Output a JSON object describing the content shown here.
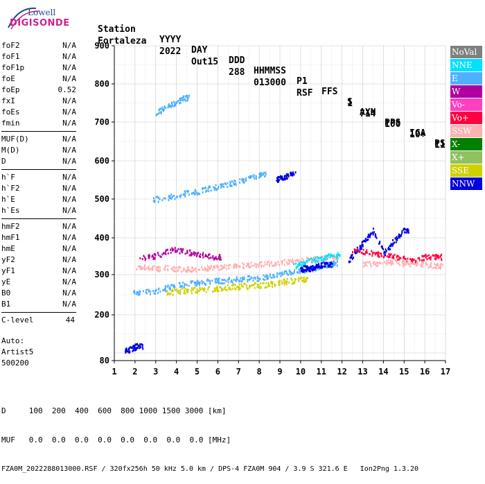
{
  "logo": {
    "top": "Lowell",
    "bottom": "DIGISONDE"
  },
  "header": {
    "labels": [
      "Station",
      "YYYY",
      "DAY",
      "DDD",
      "HHMMSS",
      "P1",
      "FFS",
      "S",
      "AXN",
      "PPS",
      "IGA",
      "PS"
    ],
    "values": [
      "Fortaleza",
      "2022",
      "Out15",
      "288",
      "013000",
      "RSF",
      "1",
      "714",
      "100",
      "10+",
      "11"
    ]
  },
  "params": {
    "group1": [
      {
        "label": "foF2",
        "value": "N/A"
      },
      {
        "label": "foF1",
        "value": "N/A"
      },
      {
        "label": "foF1p",
        "value": "N/A"
      },
      {
        "label": "foE",
        "value": "N/A"
      },
      {
        "label": "foEp",
        "value": "0.52"
      },
      {
        "label": "fxI",
        "value": "N/A"
      },
      {
        "label": "foEs",
        "value": "N/A"
      },
      {
        "label": "fmin",
        "value": "N/A"
      }
    ],
    "group2": [
      {
        "label": "MUF(D)",
        "value": "N/A"
      },
      {
        "label": "M(D)",
        "value": "N/A"
      },
      {
        "label": "D",
        "value": "N/A"
      }
    ],
    "group3": [
      {
        "label": "h`F",
        "value": "N/A"
      },
      {
        "label": "h`F2",
        "value": "N/A"
      },
      {
        "label": "h`E",
        "value": "N/A"
      },
      {
        "label": "h`Es",
        "value": "N/A"
      }
    ],
    "group4": [
      {
        "label": "hmF2",
        "value": "N/A"
      },
      {
        "label": "hmF1",
        "value": "N/A"
      },
      {
        "label": "hmE",
        "value": "N/A"
      },
      {
        "label": "yF2",
        "value": "N/A"
      },
      {
        "label": "yF1",
        "value": "N/A"
      },
      {
        "label": "yE",
        "value": "N/A"
      },
      {
        "label": "B0",
        "value": "N/A"
      },
      {
        "label": "B1",
        "value": "N/A"
      }
    ],
    "clevel": {
      "label": "C-level",
      "value": "44"
    }
  },
  "auto": {
    "line1": "Auto:",
    "line2": "Artist5",
    "line3": "500200"
  },
  "legend": [
    {
      "label": "NoVal",
      "color": "#808080"
    },
    {
      "label": "NNE",
      "color": "#00e0ff"
    },
    {
      "label": "E",
      "color": "#4fb0ff"
    },
    {
      "label": "W",
      "color": "#b000a0"
    },
    {
      "label": "Vo-",
      "color": "#ff40c0"
    },
    {
      "label": "Vo+",
      "color": "#ff0040"
    },
    {
      "label": "SSW",
      "color": "#ffb0b0"
    },
    {
      "label": "X-",
      "color": "#008000"
    },
    {
      "label": "X+",
      "color": "#90c060"
    },
    {
      "label": "SSE",
      "color": "#d0d000"
    },
    {
      "label": "NNW",
      "color": "#0000e0"
    }
  ],
  "footer": {
    "line1": "D     100  200  400  600  800 1000 1500 3000 [km]",
    "line2": "MUF   0.0  0.0  0.0  0.0  0.0  0.0  0.0  0.0 [MHz]",
    "line3": "FZA0M_2022288013000.RSF / 320fx256h 50 kHz 5.0 km / DPS-4 FZA0M 904 / 3.9 S 321.6 E   Ion2Png 1.3.20"
  },
  "chart_data": {
    "type": "scatter",
    "xlim": [
      1,
      17
    ],
    "ylim": [
      80,
      900
    ],
    "x_ticks": [
      1,
      2,
      3,
      4,
      5,
      6,
      7,
      8,
      9,
      10,
      11,
      12,
      13,
      14,
      15,
      16,
      17
    ],
    "y_ticks": [
      80,
      200,
      300,
      400,
      500,
      600,
      700,
      800,
      900
    ],
    "grid": true,
    "legend_position": "right",
    "traces": [
      {
        "legend": "E",
        "x": [
          1.85,
          2.2,
          3.0,
          3.5,
          4.0,
          4.5,
          5.0,
          5.5,
          6.0,
          6.5,
          7.0,
          7.5,
          8.0,
          8.5,
          9.0,
          9.5,
          10.0,
          10.5,
          11.0,
          11.5
        ],
        "y": [
          255,
          258,
          262,
          268,
          274,
          278,
          282,
          284,
          286,
          288,
          290,
          292,
          294,
          298,
          302,
          308,
          312,
          318,
          326,
          332
        ]
      },
      {
        "legend": "SSE",
        "x": [
          3.5,
          4.0,
          4.5,
          5.0,
          5.5,
          6.0,
          6.5,
          7.0,
          7.5,
          8.0,
          8.5,
          9.0,
          9.5,
          10.0
        ],
        "y": [
          258,
          260,
          262,
          264,
          266,
          268,
          270,
          272,
          274,
          276,
          278,
          282,
          286,
          290
        ]
      },
      {
        "legend": "SSW",
        "x": [
          2.0,
          2.5,
          3.0,
          3.5,
          4.0,
          4.5,
          5.0,
          5.5,
          6.0,
          6.5,
          7.0,
          7.5,
          8.0,
          8.5,
          9.0,
          9.5,
          10.0,
          10.5,
          11.0,
          11.5
        ],
        "y": [
          320,
          322,
          318,
          320,
          318,
          316,
          318,
          320,
          322,
          324,
          326,
          328,
          330,
          332,
          334,
          338,
          340,
          342,
          346,
          350
        ]
      },
      {
        "legend": "W",
        "x": [
          2.2,
          2.8,
          3.3,
          3.8,
          4.3,
          4.8,
          5.3,
          5.8
        ],
        "y": [
          345,
          350,
          360,
          370,
          365,
          360,
          355,
          350
        ]
      },
      {
        "legend": "NNE",
        "x": [
          9.6,
          10.0,
          10.4,
          10.8,
          11.2,
          11.6
        ],
        "y": [
          325,
          330,
          340,
          345,
          350,
          355
        ]
      },
      {
        "legend": "E",
        "x": [
          2.8,
          3.5,
          4.0,
          4.5,
          5.0,
          5.5,
          6.0,
          6.5,
          7.0,
          7.5,
          8.0
        ],
        "y": [
          500,
          505,
          510,
          518,
          522,
          528,
          534,
          540,
          548,
          556,
          565
        ]
      },
      {
        "legend": "E",
        "x": [
          3.0,
          3.3,
          3.7,
          4.0,
          4.3
        ],
        "y": [
          725,
          735,
          745,
          755,
          765
        ]
      },
      {
        "legend": "NNW",
        "x": [
          8.8,
          9.0,
          9.2,
          9.4
        ],
        "y": [
          552,
          556,
          560,
          566
        ]
      },
      {
        "legend": "NNW",
        "x": [
          10.0,
          10.2,
          10.4,
          10.6,
          10.8,
          11.0,
          11.2
        ],
        "y": [
          315,
          320,
          318,
          322,
          325,
          328,
          330
        ]
      },
      {
        "legend": "NNW",
        "x": [
          12.3,
          12.6,
          12.9,
          13.2,
          13.5,
          14.0,
          14.3,
          14.6,
          14.9
        ],
        "y": [
          340,
          360,
          380,
          400,
          420,
          360,
          380,
          400,
          420
        ]
      },
      {
        "legend": "Vo+",
        "x": [
          12.5,
          13.0,
          13.5,
          14.0,
          14.5,
          15.0,
          15.5,
          16.0,
          16.5
        ],
        "y": [
          370,
          365,
          360,
          355,
          350,
          345,
          340,
          350,
          350
        ]
      },
      {
        "legend": "SSW",
        "x": [
          13.0,
          13.5,
          14.0,
          14.5,
          15.0,
          15.5,
          16.0,
          16.5
        ],
        "y": [
          330,
          332,
          334,
          336,
          332,
          330,
          328,
          326
        ]
      },
      {
        "legend": "NNW",
        "x": [
          1.5,
          1.7,
          1.9,
          2.05
        ],
        "y": [
          110,
          110,
          115,
          120
        ]
      }
    ]
  }
}
